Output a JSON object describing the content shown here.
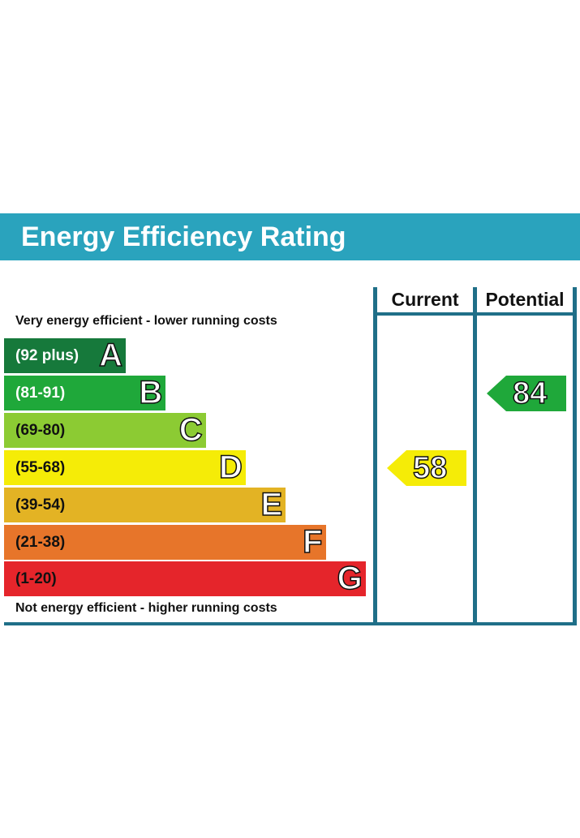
{
  "chart_data": {
    "type": "bar",
    "title": "Energy Efficiency Rating",
    "columns": [
      "Current",
      "Potential"
    ],
    "top_caption": "Very energy efficient - lower running costs",
    "bottom_caption": "Not energy efficient - higher running costs",
    "bands": [
      {
        "letter": "A",
        "range": "(92 plus)",
        "color": "#16793b",
        "text_color": "#ffffff"
      },
      {
        "letter": "B",
        "range": "(81-91)",
        "color": "#1fa83a",
        "text_color": "#ffffff"
      },
      {
        "letter": "C",
        "range": "(69-80)",
        "color": "#8ccb33",
        "text_color": "#111111"
      },
      {
        "letter": "D",
        "range": "(55-68)",
        "color": "#f5ec07",
        "text_color": "#111111"
      },
      {
        "letter": "E",
        "range": "(39-54)",
        "color": "#e3b324",
        "text_color": "#111111"
      },
      {
        "letter": "F",
        "range": "(21-38)",
        "color": "#e7752a",
        "text_color": "#111111"
      },
      {
        "letter": "G",
        "range": "(1-20)",
        "color": "#e5252b",
        "text_color": "#111111"
      }
    ],
    "ratings": {
      "current": {
        "value": 58,
        "band": "D",
        "color": "#f5ec07"
      },
      "potential": {
        "value": 84,
        "band": "B",
        "color": "#1fa83a"
      }
    }
  }
}
